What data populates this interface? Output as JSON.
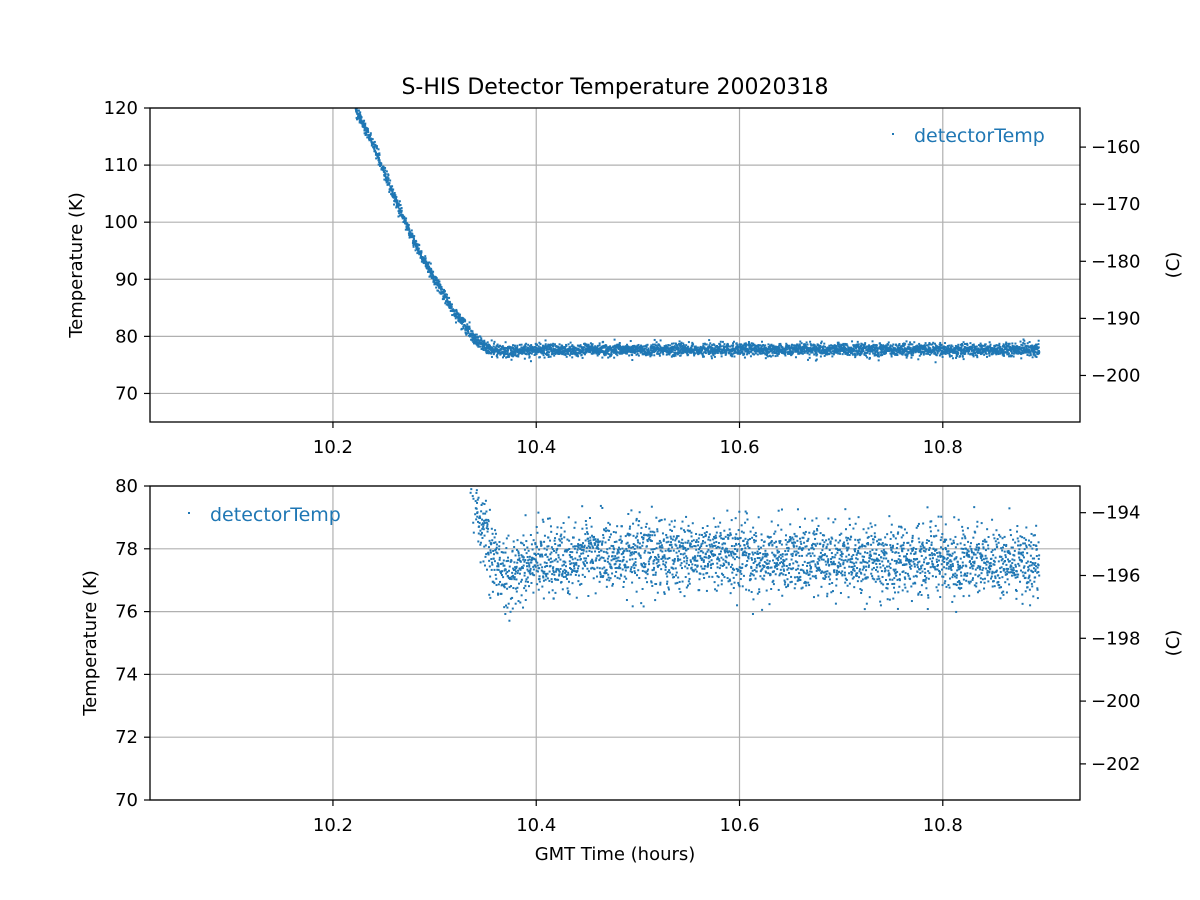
{
  "title": "S-HIS Detector Temperature 20020318",
  "colors": {
    "series": "#1f77b4",
    "grid": "#b0b0b0",
    "axis": "#000000"
  },
  "chart_data": [
    {
      "type": "scatter",
      "ylabel": "Temperature (K)",
      "ylabel_right": "(C)",
      "xlabel": "",
      "xlim": [
        10.02,
        10.935
      ],
      "ylim": [
        65,
        120
      ],
      "right_ylim_c": [
        -208.15,
        -153.15
      ],
      "xticks": [
        "10.2",
        "10.4",
        "10.6",
        "10.8"
      ],
      "yticks": [
        "70",
        "80",
        "90",
        "100",
        "110",
        "120"
      ],
      "right_yticks": [
        "−200",
        "−190",
        "−180",
        "−170",
        "−160"
      ],
      "grid": true,
      "legend": {
        "label": "detectorTemp",
        "placement": "top-right"
      },
      "series": [
        {
          "name": "detectorTemp",
          "trend": [
            [
              10.222,
              120.0
            ],
            [
              10.24,
              113.5
            ],
            [
              10.26,
              104.5
            ],
            [
              10.28,
              96.5
            ],
            [
              10.3,
              90.0
            ],
            [
              10.32,
              84.0
            ],
            [
              10.34,
              79.5
            ],
            [
              10.35,
              78.0
            ],
            [
              10.37,
              77.2
            ],
            [
              10.4,
              77.6
            ],
            [
              10.6,
              77.7
            ],
            [
              10.895,
              77.6
            ]
          ],
          "x_range": [
            10.222,
            10.895
          ],
          "noise_k": 0.55,
          "points": 4200
        }
      ]
    },
    {
      "type": "scatter",
      "ylabel": "Temperature (K)",
      "ylabel_right": "(C)",
      "xlabel": "GMT Time (hours)",
      "xlim": [
        10.02,
        10.935
      ],
      "ylim": [
        70,
        80
      ],
      "right_ylim_c": [
        -203.15,
        -193.15
      ],
      "xticks": [
        "10.2",
        "10.4",
        "10.6",
        "10.8"
      ],
      "yticks": [
        "70",
        "72",
        "74",
        "76",
        "78",
        "80"
      ],
      "right_yticks": [
        "−202",
        "−200",
        "−198",
        "−196",
        "−194"
      ],
      "grid": true,
      "legend": {
        "label": "detectorTemp",
        "placement": "top-left"
      },
      "series": [
        {
          "name": "detectorTemp",
          "trend": [
            [
              10.333,
              81.5
            ],
            [
              10.338,
              80.0
            ],
            [
              10.345,
              79.0
            ],
            [
              10.355,
              77.8
            ],
            [
              10.37,
              77.2
            ],
            [
              10.39,
              77.5
            ],
            [
              10.45,
              77.8
            ],
            [
              10.55,
              77.8
            ],
            [
              10.65,
              77.7
            ],
            [
              10.75,
              77.6
            ],
            [
              10.895,
              77.6
            ]
          ],
          "x_range": [
            10.333,
            10.895
          ],
          "noise_k": 0.55,
          "points": 3000
        }
      ]
    }
  ]
}
